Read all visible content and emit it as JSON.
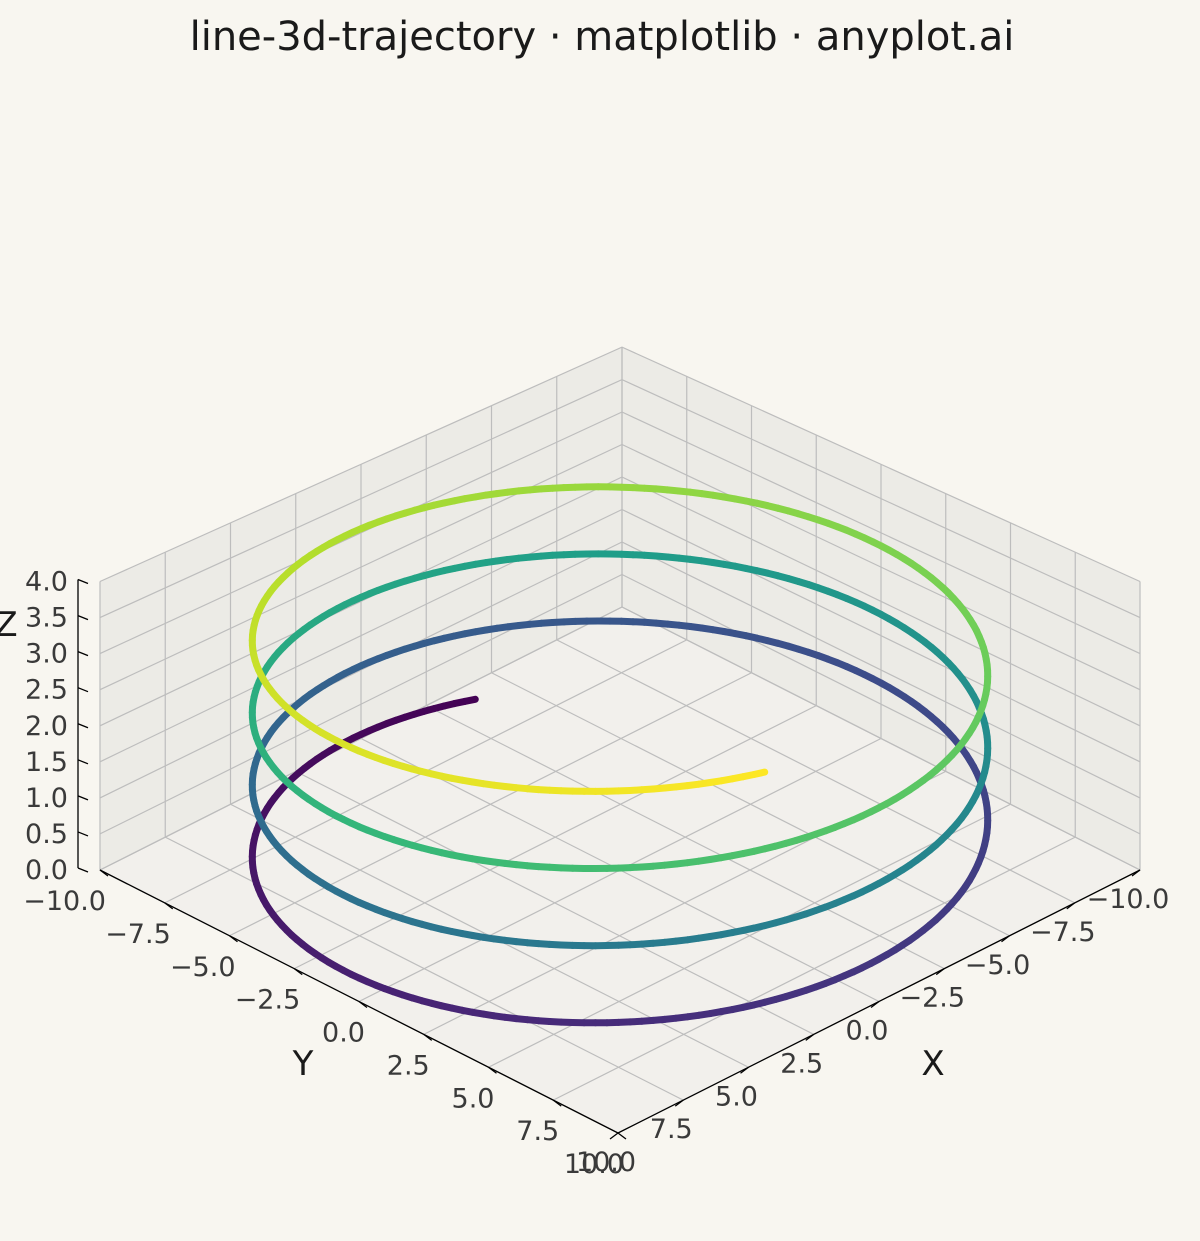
{
  "chart_data": {
    "type": "line",
    "title": "line-3d-trajectory · matplotlib · anyplot.ai",
    "xlabel": "X",
    "ylabel": "Y",
    "zlabel": "Z",
    "xlim": [
      -10,
      10
    ],
    "ylim": [
      -10,
      10
    ],
    "zlim": [
      0,
      4
    ],
    "xticks": [
      "−10.0",
      "−7.5",
      "−5.0",
      "−2.5",
      "0.0",
      "2.5",
      "5.0",
      "7.5",
      "10.0"
    ],
    "yticks": [
      "−10.0",
      "−7.5",
      "−5.0",
      "−2.5",
      "0.0",
      "2.5",
      "5.0",
      "7.5",
      "10.0"
    ],
    "zticks": [
      "0.0",
      "0.5",
      "1.0",
      "1.5",
      "2.0",
      "2.5",
      "3.0",
      "3.5",
      "4.0"
    ],
    "grid": true,
    "colormap": "viridis",
    "series": [
      {
        "curve": "helix",
        "radius": 10,
        "turns": 3.5,
        "z_start": 0,
        "z_end": 3.5
      }
    ]
  },
  "colors": {
    "background": "#f8f6f0",
    "pane_side": "#ecebe6",
    "pane_floor": "#f2f0ec",
    "viridis": [
      "#440154",
      "#482878",
      "#3e4989",
      "#31688e",
      "#26828e",
      "#1f9e89",
      "#35b779",
      "#6ece58",
      "#b5de2b",
      "#fde725"
    ]
  }
}
